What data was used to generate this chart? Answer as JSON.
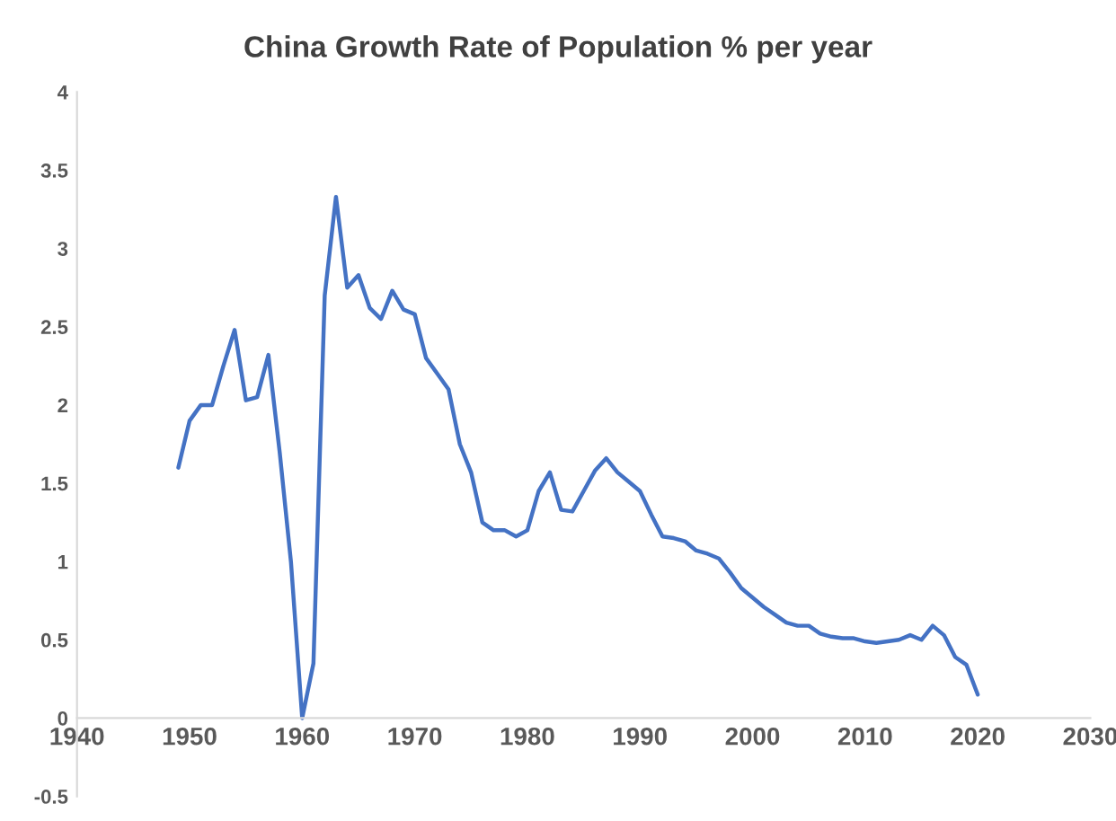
{
  "chart_data": {
    "type": "line",
    "title": "China Growth Rate of Population % per year",
    "x": [
      1949,
      1950,
      1951,
      1952,
      1953,
      1954,
      1955,
      1956,
      1957,
      1958,
      1959,
      1960,
      1961,
      1962,
      1963,
      1964,
      1965,
      1966,
      1967,
      1968,
      1969,
      1970,
      1971,
      1972,
      1973,
      1974,
      1975,
      1976,
      1977,
      1978,
      1979,
      1980,
      1981,
      1982,
      1983,
      1984,
      1985,
      1986,
      1987,
      1988,
      1989,
      1990,
      1991,
      1992,
      1993,
      1994,
      1995,
      1996,
      1997,
      1998,
      1999,
      2000,
      2001,
      2002,
      2003,
      2004,
      2005,
      2006,
      2007,
      2008,
      2009,
      2010,
      2011,
      2012,
      2013,
      2014,
      2015,
      2016,
      2017,
      2018,
      2019,
      2020
    ],
    "series": [
      {
        "color": "#4472c4",
        "values": [
          1.6,
          1.9,
          2.0,
          2.0,
          2.25,
          2.48,
          2.03,
          2.05,
          2.32,
          1.7,
          1.0,
          0.0,
          0.35,
          2.7,
          3.33,
          2.75,
          2.83,
          2.62,
          2.55,
          2.73,
          2.61,
          2.58,
          2.3,
          2.2,
          2.1,
          1.75,
          1.57,
          1.25,
          1.2,
          1.2,
          1.16,
          1.2,
          1.45,
          1.57,
          1.33,
          1.32,
          1.45,
          1.58,
          1.66,
          1.57,
          1.51,
          1.45,
          1.3,
          1.16,
          1.15,
          1.13,
          1.07,
          1.05,
          1.02,
          0.93,
          0.83,
          0.77,
          0.71,
          0.66,
          0.61,
          0.59,
          0.59,
          0.54,
          0.52,
          0.51,
          0.51,
          0.49,
          0.48,
          0.49,
          0.5,
          0.53,
          0.5,
          0.59,
          0.53,
          0.39,
          0.34,
          0.15
        ]
      }
    ],
    "xlim": [
      1940,
      2030
    ],
    "xticks": [
      1940,
      1950,
      1960,
      1970,
      1980,
      1990,
      2000,
      2010,
      2020,
      2030
    ],
    "ylim": [
      -0.5,
      4
    ],
    "yticks": [
      -0.5,
      0,
      0.5,
      1,
      1.5,
      2,
      2.5,
      3,
      3.5,
      4
    ],
    "grid": false,
    "legend": false,
    "marker": "none",
    "line_style": "solid"
  }
}
